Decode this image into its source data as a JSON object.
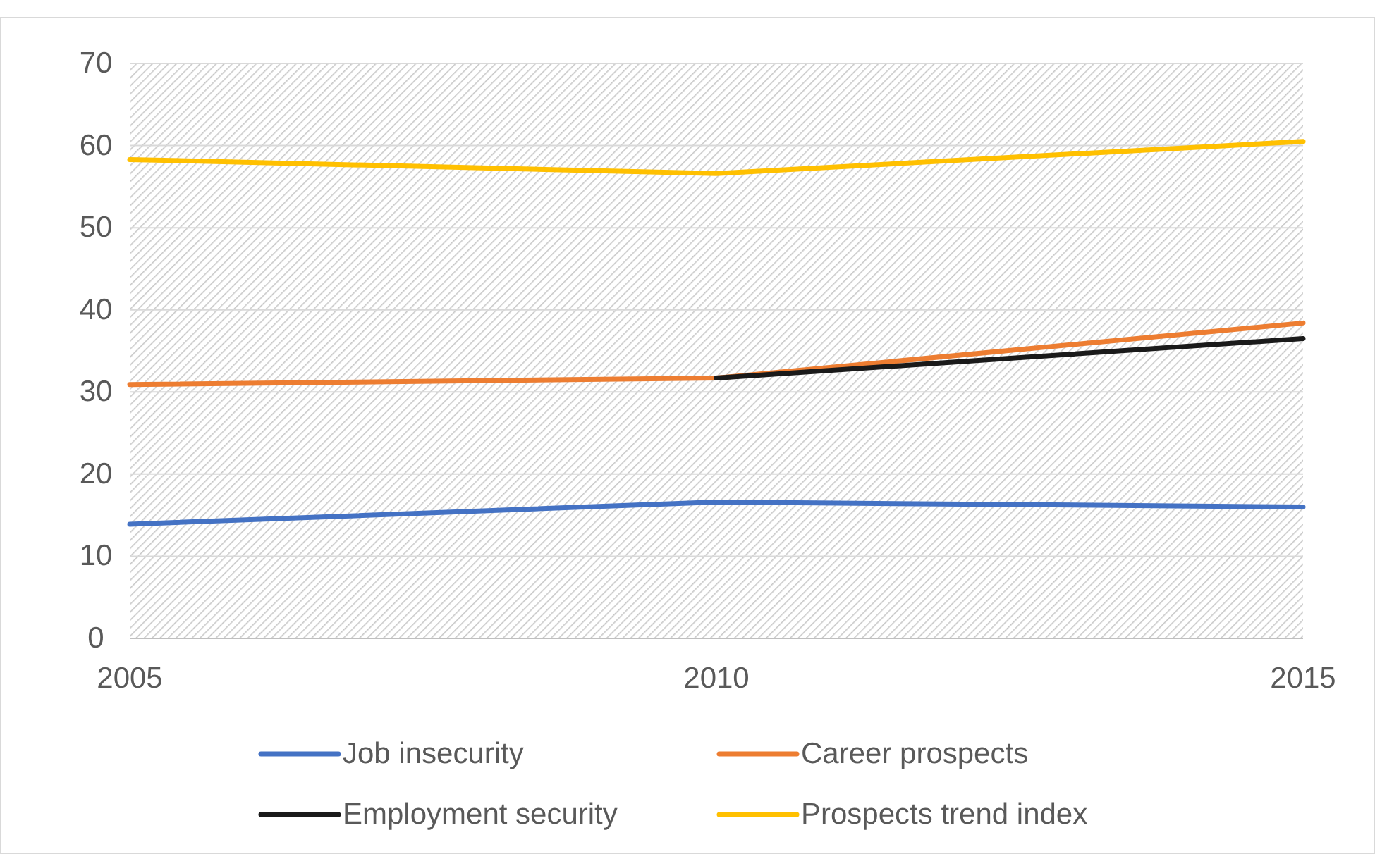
{
  "chart_data": {
    "type": "line",
    "x": [
      2005,
      2010,
      2015
    ],
    "xlim": [
      2005,
      2015
    ],
    "xticks": [
      2005,
      2010,
      2015
    ],
    "ylim": [
      0,
      70
    ],
    "yticks": [
      0,
      10,
      20,
      30,
      40,
      50,
      60,
      70
    ],
    "grid": "y",
    "legend": "bottom",
    "line_style": "solid",
    "series": [
      {
        "name": "Job insecurity",
        "color": "#4472c4",
        "values": [
          13.9,
          16.6,
          16.0
        ]
      },
      {
        "name": "Career prospects",
        "color": "#ed7d31",
        "values": [
          30.9,
          31.7,
          38.4
        ]
      },
      {
        "name": "Employment security",
        "color": "#1a1a1a",
        "values": [
          null,
          31.7,
          36.5
        ]
      },
      {
        "name": "Prospects trend index",
        "color": "#ffc000",
        "values": [
          58.3,
          56.6,
          60.5
        ]
      }
    ]
  }
}
